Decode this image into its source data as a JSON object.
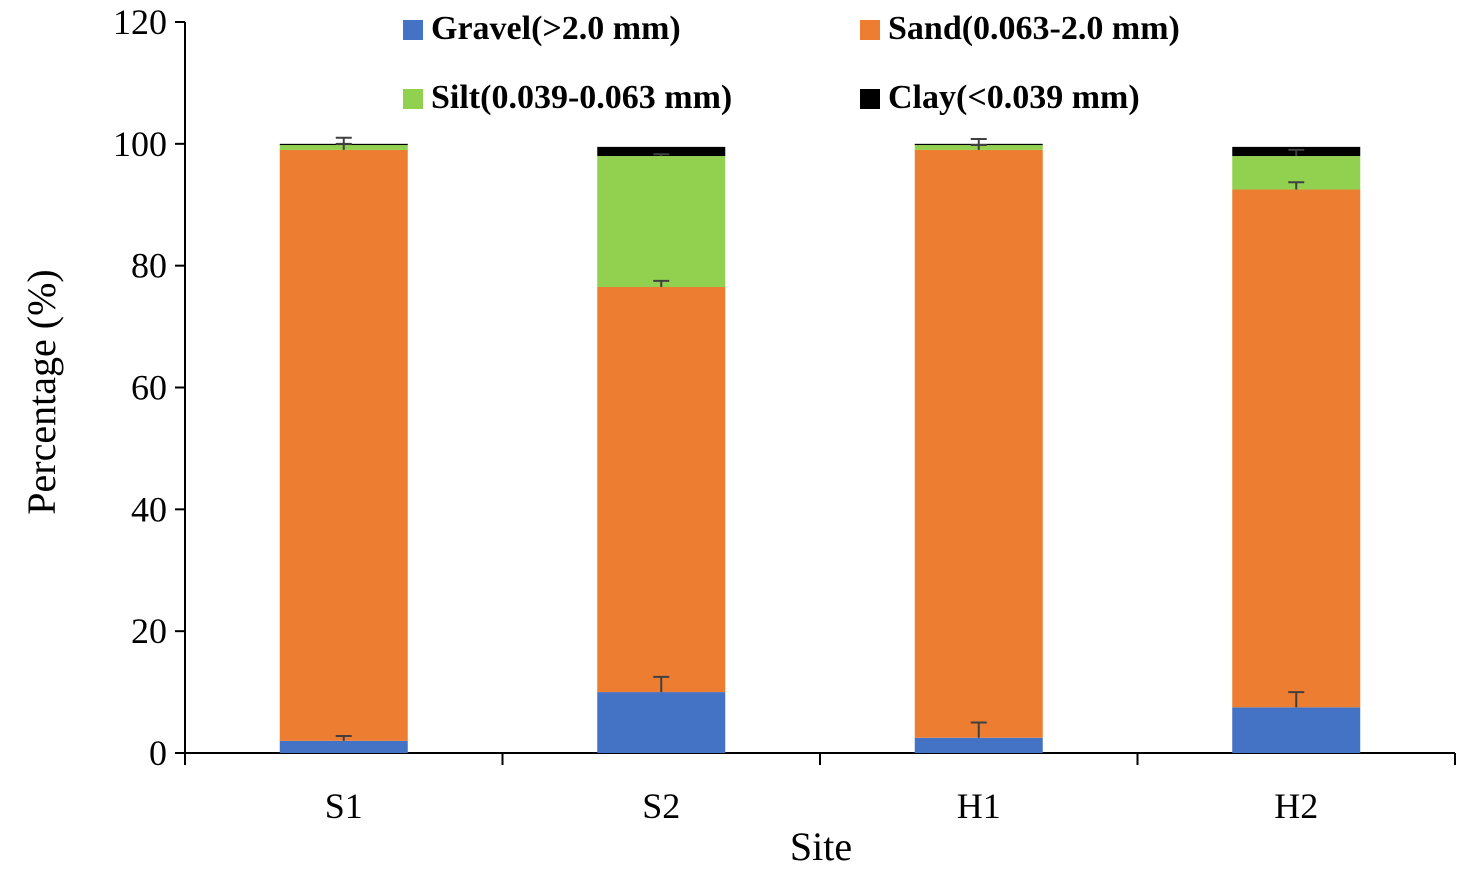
{
  "chart_data": {
    "type": "bar",
    "stacked": true,
    "title": "",
    "xlabel": "Site",
    "ylabel": "Percentage (%)",
    "ylim": [
      0,
      120
    ],
    "yticks": [
      0,
      20,
      40,
      60,
      80,
      100,
      120
    ],
    "categories": [
      "S1",
      "S2",
      "H1",
      "H2"
    ],
    "legend_position": "top",
    "series": [
      {
        "name": "Gravel(>2.0 mm)",
        "color": "#4472C4",
        "values": [
          2.0,
          10.0,
          2.5,
          7.5
        ],
        "errors": [
          0.8,
          2.5,
          2.5,
          2.5
        ]
      },
      {
        "name": "Sand(0.063-2.0 mm)",
        "color": "#ED7D31",
        "values": [
          97.0,
          66.5,
          96.5,
          85.0
        ],
        "errors": [
          1.0,
          1.0,
          0.8,
          1.2
        ]
      },
      {
        "name": "Silt(0.039-0.063 mm)",
        "color": "#92D050",
        "values": [
          0.8,
          21.5,
          0.8,
          5.5
        ],
        "errors": [
          1.2,
          0.3,
          1.0,
          1.0
        ]
      },
      {
        "name": "Clay(<0.039 mm)",
        "color": "#000000",
        "values": [
          0.2,
          1.5,
          0.2,
          1.5
        ],
        "errors": [
          0.0,
          0.0,
          0.0,
          0.0
        ]
      }
    ]
  }
}
